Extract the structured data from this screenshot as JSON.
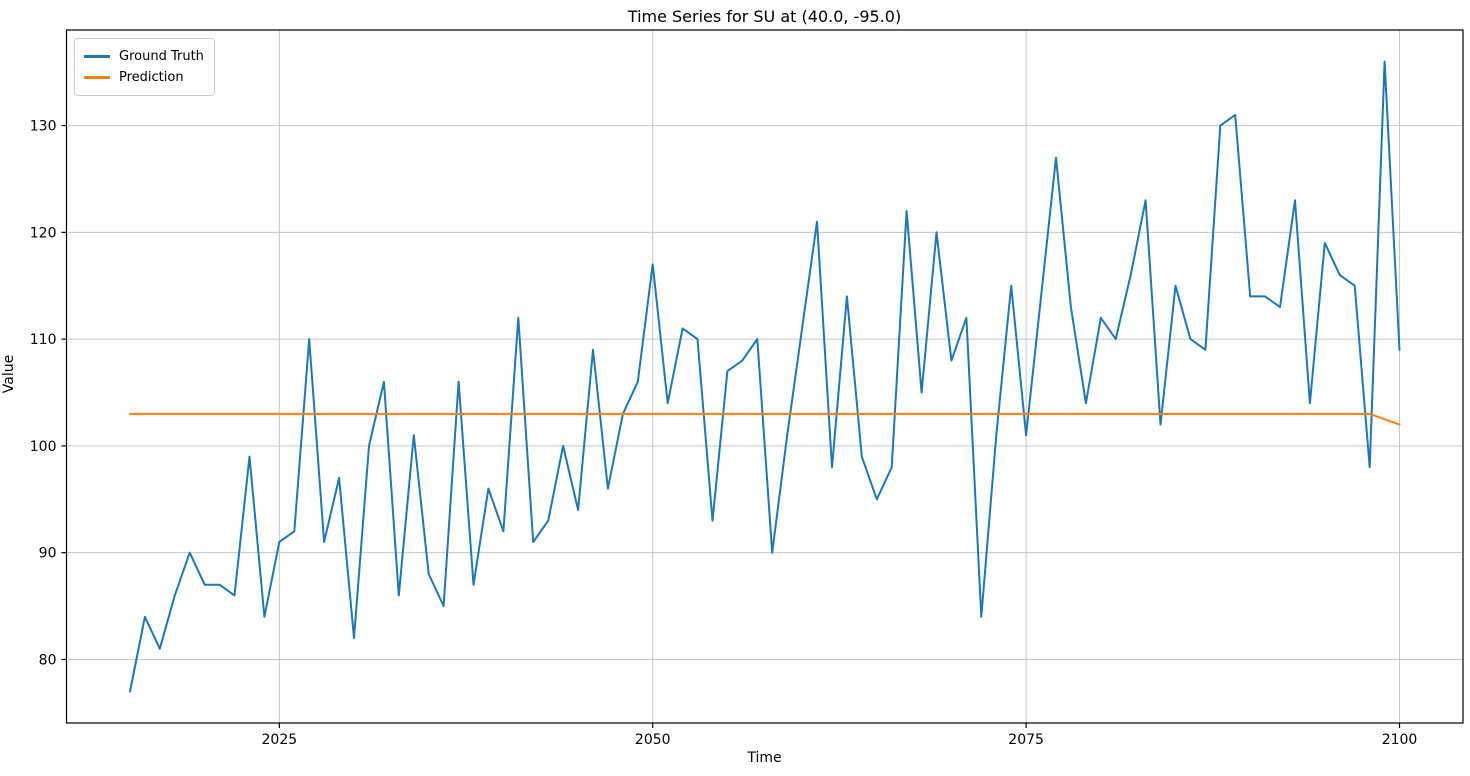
{
  "header": {
    "title": "Time Series for SU at (40.0, -95.0)"
  },
  "axes": {
    "xlabel": "Time",
    "ylabel": "Value"
  },
  "legend": {
    "entries": [
      {
        "label": "Ground Truth",
        "color": "#1f77b4"
      },
      {
        "label": "Prediction",
        "color": "#ff7f0e"
      }
    ]
  },
  "colors": {
    "ground_truth": "#1f77b4",
    "prediction": "#ff7f0e",
    "grid": "#c6c6c6",
    "spine": "#000000"
  },
  "chart_data": {
    "type": "line",
    "title": "Time Series for SU at (40.0, -95.0)",
    "xlabel": "Time",
    "ylabel": "Value",
    "xlim": [
      2010.75,
      2104.25
    ],
    "ylim": [
      74.05,
      138.95
    ],
    "xticks": [
      2025,
      2050,
      2075,
      2100
    ],
    "yticks": [
      80,
      90,
      100,
      110,
      120,
      130
    ],
    "grid": true,
    "legend_position": "upper left",
    "series": [
      {
        "name": "Ground Truth",
        "color": "#1f77b4",
        "x_start": 2015,
        "x_step": 1,
        "values": [
          77,
          84,
          81,
          86,
          90,
          87,
          87,
          86,
          99,
          84,
          91,
          92,
          110,
          91,
          97,
          82,
          100,
          106,
          86,
          101,
          88,
          85,
          106,
          87,
          96,
          92,
          112,
          91,
          93,
          100,
          94,
          109,
          96,
          103,
          106,
          117,
          104,
          111,
          110,
          93,
          107,
          108,
          110,
          90,
          101,
          111,
          121,
          98,
          114,
          99,
          95,
          98,
          122,
          105,
          120,
          108,
          112,
          84,
          101,
          115,
          101,
          114,
          127,
          113,
          104,
          112,
          110,
          116,
          123,
          102,
          115,
          110,
          109,
          130,
          131,
          114,
          114,
          113,
          123,
          104,
          119,
          116,
          115,
          98,
          136,
          109
        ]
      },
      {
        "name": "Prediction",
        "color": "#ff7f0e",
        "x": [
          2015,
          2098,
          2099,
          2100
        ],
        "y": [
          103,
          103,
          102.5,
          102
        ]
      }
    ]
  }
}
